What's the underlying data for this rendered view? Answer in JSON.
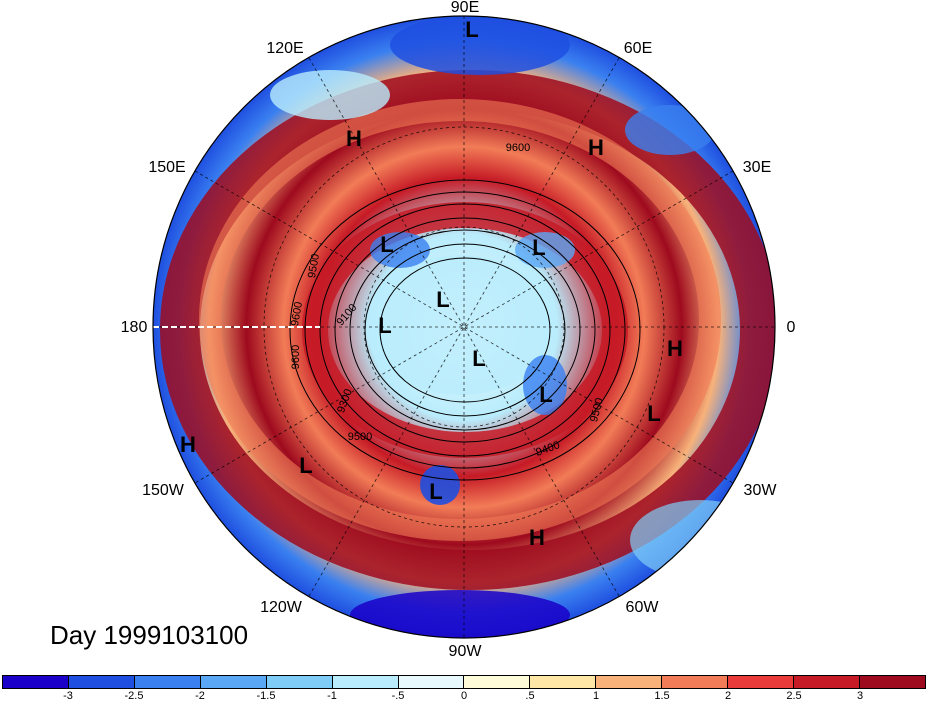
{
  "longitude_labels": [
    {
      "text": "90E",
      "id": "lon-90e"
    },
    {
      "text": "60E",
      "id": "lon-60e"
    },
    {
      "text": "30E",
      "id": "lon-30e"
    },
    {
      "text": "0",
      "id": "lon-0"
    },
    {
      "text": "30W",
      "id": "lon-30w"
    },
    {
      "text": "60W",
      "id": "lon-60w"
    },
    {
      "text": "90W",
      "id": "lon-90w"
    },
    {
      "text": "120W",
      "id": "lon-120w"
    },
    {
      "text": "150W",
      "id": "lon-150w"
    },
    {
      "text": "180",
      "id": "lon-180"
    },
    {
      "text": "150E",
      "id": "lon-150e"
    },
    {
      "text": "120E",
      "id": "lon-120e"
    }
  ],
  "pressure_centers": [
    "L",
    "H",
    "H",
    "L",
    "L",
    "L",
    "L",
    "L",
    "L",
    "L",
    "H",
    "L",
    "H",
    "L",
    "L",
    "H"
  ],
  "contour_labels": [
    "9600",
    "9500",
    "9600",
    "9100",
    "9300",
    "9500",
    "9400",
    "9500",
    "9600"
  ],
  "day_label": "Day 1999103100",
  "colorbar": {
    "colors": [
      "#1a00c8",
      "#1f4fe0",
      "#3a80f0",
      "#5aa7f5",
      "#7fcdf7",
      "#b9ecfc",
      "#e8f9fd",
      "#fefbd9",
      "#fde6a6",
      "#f8b27a",
      "#f27c57",
      "#ea3b3b",
      "#c61a26",
      "#9e0a1e"
    ],
    "ticks": [
      "-3",
      "-2.5",
      "-2",
      "-1.5",
      "-1",
      "-.5",
      "0",
      ".5",
      "1",
      "1.5",
      "2",
      "2.5",
      "3"
    ]
  }
}
